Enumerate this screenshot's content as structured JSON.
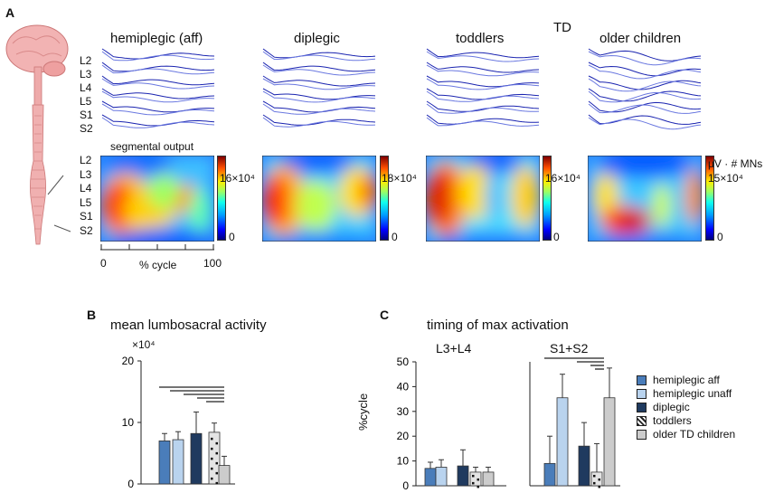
{
  "panel_a": {
    "letter": "A",
    "td_label": "TD",
    "columns": [
      {
        "title": "hemiplegic (aff)",
        "cbar_max": "16×10⁴"
      },
      {
        "title": "diplegic",
        "cbar_max": "18×10⁴"
      },
      {
        "title": "toddlers",
        "cbar_max": "16×10⁴"
      },
      {
        "title": "older children",
        "cbar_max": "15×10⁴"
      }
    ],
    "segments": [
      "L2",
      "L3",
      "L4",
      "L5",
      "S1",
      "S2"
    ],
    "segmental_output_label": "segmental output",
    "cbar_min": "0",
    "unit_label": "μV · # MNs",
    "x_axis": {
      "label": "% cycle",
      "min": "0",
      "max": "100"
    }
  },
  "chart_data": [
    {
      "type": "bar",
      "panel": "B",
      "title": "mean lumbosacral activity",
      "ylabel": "",
      "y_scale_label": "×10⁴",
      "yticks": [
        "0",
        "10",
        "20"
      ],
      "ylim": [
        0,
        20
      ],
      "series": [
        {
          "name": "hemiplegic aff",
          "value": 7.0,
          "error": 1.2
        },
        {
          "name": "hemiplegic unaff",
          "value": 7.2,
          "error": 1.3
        },
        {
          "name": "diplegic",
          "value": 8.2,
          "error": 3.5
        },
        {
          "name": "toddlers",
          "value": 8.4,
          "error": 1.5
        },
        {
          "name": "older TD children",
          "value": 3.0,
          "error": 1.5
        }
      ]
    },
    {
      "type": "bar",
      "panel": "C",
      "title": "timing of max activation",
      "ylabel": "%cycle",
      "yticks": [
        "0",
        "10",
        "20",
        "30",
        "40",
        "50"
      ],
      "ylim": [
        0,
        50
      ],
      "groups": [
        {
          "label": "L3+L4",
          "values": [
            7.0,
            7.5,
            8.0,
            5.5,
            5.5
          ],
          "errors": [
            2.5,
            3.0,
            6.5,
            2.0,
            2.0
          ]
        },
        {
          "label": "S1+S2",
          "values": [
            9.0,
            35.5,
            16.0,
            5.5,
            35.5
          ],
          "errors": [
            11.0,
            9.5,
            9.5,
            11.5,
            12.0
          ]
        }
      ]
    }
  ],
  "legend": [
    {
      "label": "hemiplegic  aff",
      "color": "#4a7dba"
    },
    {
      "label": "hemiplegic  unaff",
      "color": "#b9d3ee"
    },
    {
      "label": "diplegic",
      "color": "#1f3a5f"
    },
    {
      "label": "toddlers",
      "color": "#e4e4e4"
    },
    {
      "label": "older TD children",
      "color": "#cccccc"
    }
  ],
  "panel_b": {
    "letter": "B"
  },
  "panel_c": {
    "letter": "C"
  }
}
